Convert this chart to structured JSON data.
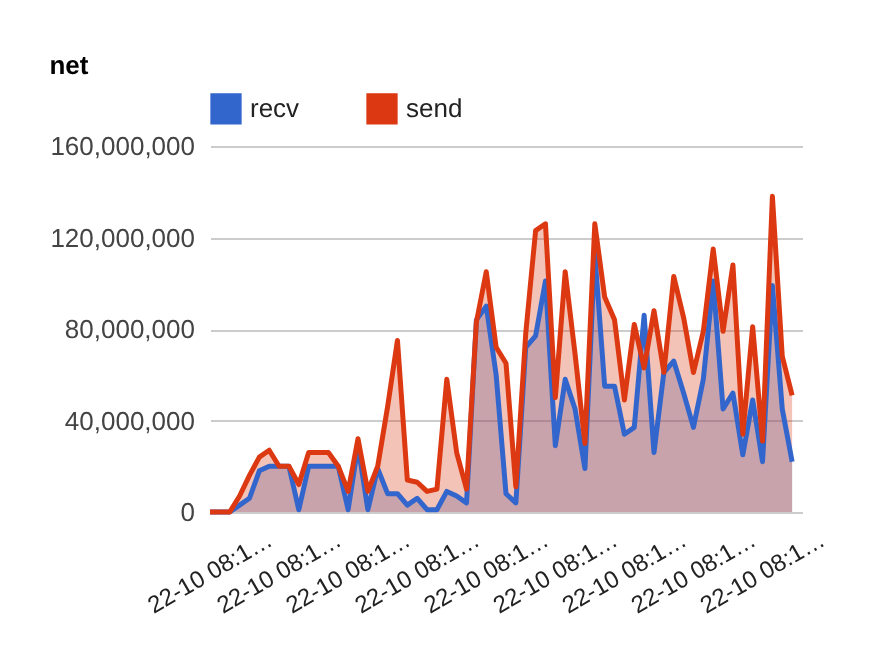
{
  "chart_data": {
    "type": "area",
    "title": "net",
    "categories": [
      "22-10 08:1…",
      null,
      null,
      null,
      null,
      null,
      null,
      "22-10 08:1…",
      null,
      null,
      null,
      null,
      null,
      null,
      "22-10 08:1…",
      null,
      null,
      null,
      null,
      null,
      null,
      "22-10 08:1…",
      null,
      null,
      null,
      null,
      null,
      null,
      "22-10 08:1…",
      null,
      null,
      null,
      null,
      null,
      null,
      "22-10 08:1…",
      null,
      null,
      null,
      null,
      null,
      null,
      "22-10 08:1…",
      null,
      null,
      null,
      null,
      null,
      null,
      "22-10 08:1…",
      null,
      null,
      null,
      null,
      null,
      null,
      "22-10 08:1…",
      null,
      null,
      null
    ],
    "series": [
      {
        "name": "recv",
        "color": "#3366cc",
        "values": [
          0,
          0,
          0,
          3000000,
          6000000,
          18000000,
          20000000,
          20000000,
          20000000,
          1000000,
          20000000,
          20000000,
          20000000,
          20000000,
          1000000,
          29000000,
          1000000,
          19000000,
          8000000,
          8000000,
          3000000,
          6000000,
          1000000,
          1000000,
          9000000,
          7000000,
          4000000,
          84000000,
          90000000,
          60000000,
          8000000,
          4000000,
          72000000,
          77000000,
          101000000,
          29000000,
          58000000,
          45000000,
          19000000,
          113000000,
          55000000,
          55000000,
          34000000,
          37000000,
          86000000,
          26000000,
          61000000,
          66000000,
          52000000,
          37000000,
          58000000,
          101000000,
          45000000,
          52000000,
          25000000,
          49000000,
          22000000,
          99000000,
          45000000,
          22000000
        ]
      },
      {
        "name": "send",
        "color": "#dc3912",
        "values": [
          0,
          0,
          0,
          7000000,
          16000000,
          24000000,
          27000000,
          20000000,
          20000000,
          12000000,
          26000000,
          26000000,
          26000000,
          20000000,
          9000000,
          32000000,
          9000000,
          20000000,
          46000000,
          75000000,
          14000000,
          13000000,
          9000000,
          10000000,
          58000000,
          26000000,
          10000000,
          83000000,
          105000000,
          72000000,
          65000000,
          11000000,
          78000000,
          123000000,
          126000000,
          50000000,
          105000000,
          69000000,
          30000000,
          126000000,
          94000000,
          84000000,
          49000000,
          82000000,
          63000000,
          88000000,
          61000000,
          103000000,
          85000000,
          61000000,
          79000000,
          115000000,
          79000000,
          108000000,
          34000000,
          81000000,
          31000000,
          138000000,
          68000000,
          51000000
        ]
      }
    ],
    "ylim": [
      0,
      160000000
    ],
    "yticks": [
      0,
      {
        "value": 40000000,
        "label": "40,000,000"
      },
      {
        "value": 80000000,
        "label": "80,000,000"
      },
      {
        "value": 120000000,
        "label": "120,000,000"
      },
      {
        "value": 160000000,
        "label": "160,000,000"
      }
    ],
    "grid": "y",
    "legend": "top left"
  }
}
